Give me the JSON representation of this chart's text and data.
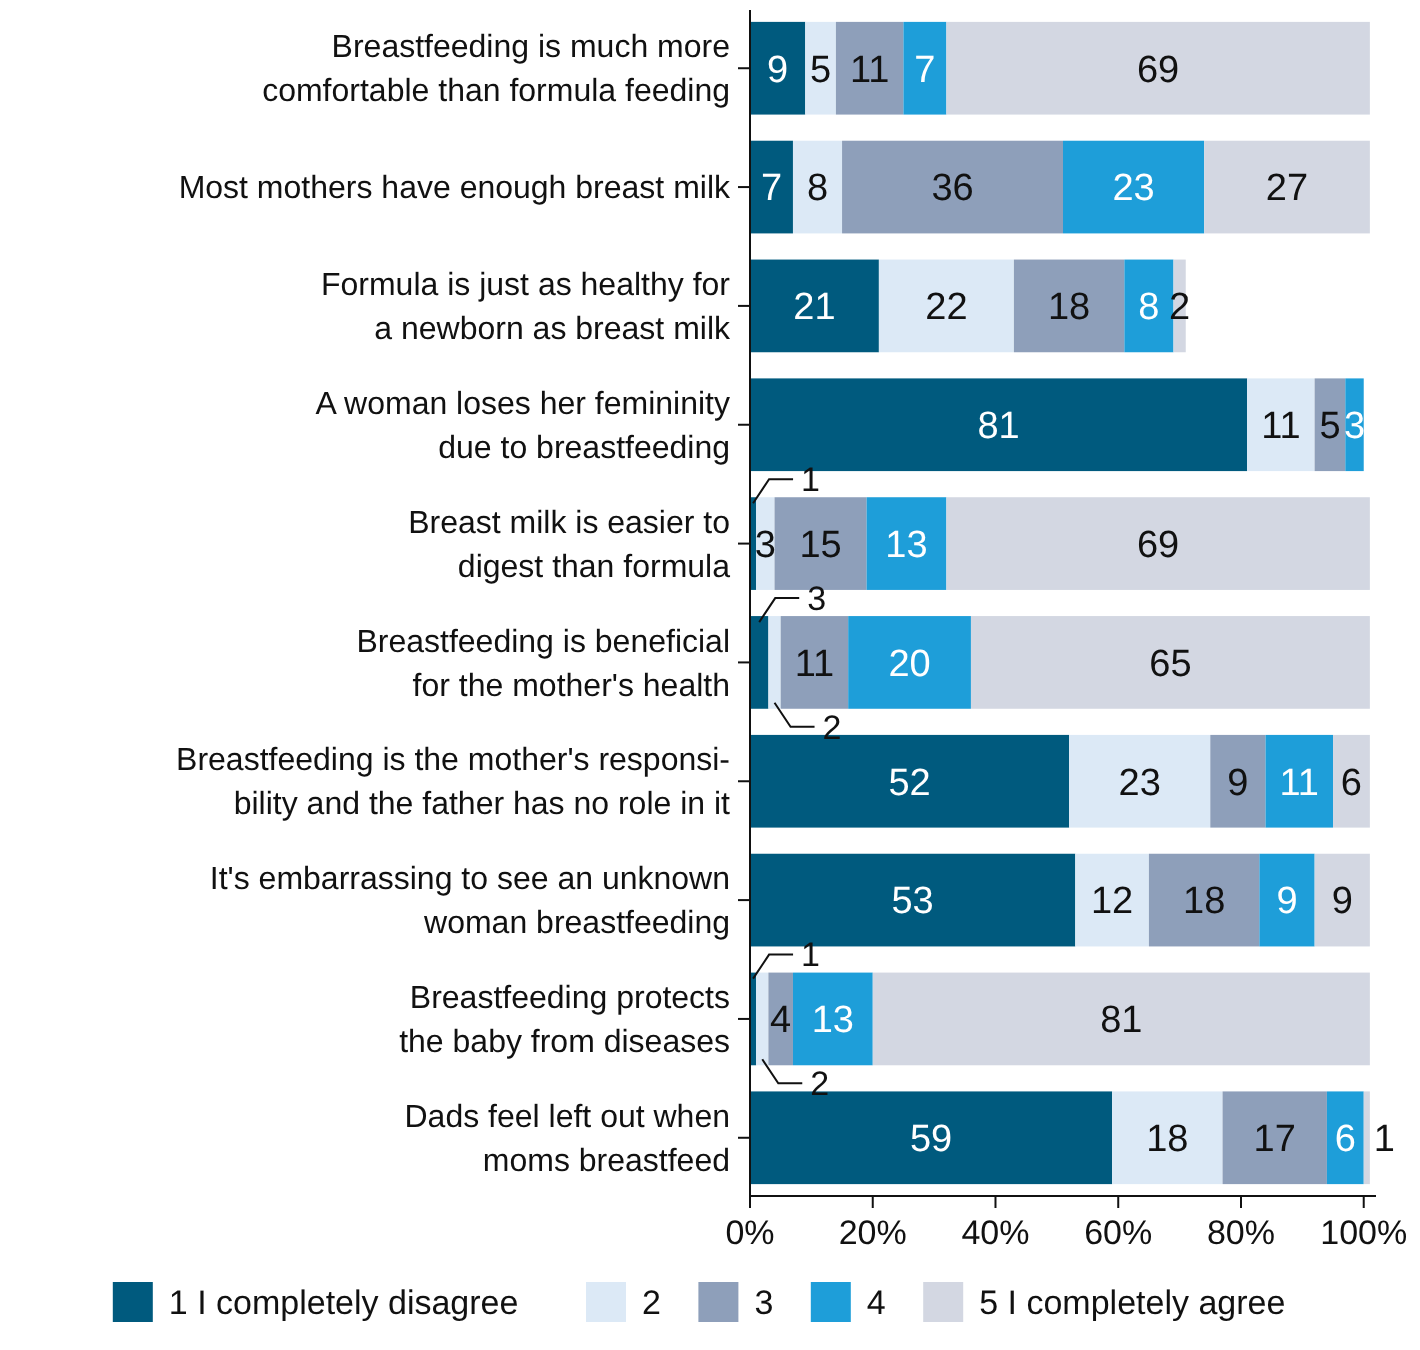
{
  "chart_data": {
    "type": "bar",
    "orientation": "horizontal",
    "stacked": true,
    "data_labels": true,
    "legend": "bottom",
    "categories": [
      "Breastfeeding is much more\ncomfortable than formula feeding",
      "Most mothers have enough breast milk",
      "Formula is just as healthy for\na newborn as breast milk",
      "A woman loses her femininity\ndue to breastfeeding",
      "Breast milk is easier to\ndigest than formula",
      "Breastfeeding is beneficial\nfor the mother's health",
      "Breastfeeding is the mother's responsi-\nbility and the father has no role in it",
      "It's embarrassing to see an unknown\nwoman breastfeeding",
      "Breastfeeding protects\nthe baby from diseases",
      "Dads feel left out when\nmoms breastfeed"
    ],
    "series": [
      {
        "name": "1 I completely disagree",
        "color": "#005a7e",
        "values": [
          9,
          7,
          21,
          81,
          1,
          3,
          52,
          53,
          1,
          59
        ]
      },
      {
        "name": "2",
        "color": "#dce9f6",
        "values": [
          5,
          8,
          22,
          11,
          3,
          2,
          23,
          12,
          2,
          18
        ]
      },
      {
        "name": "3",
        "color": "#8e9fba",
        "values": [
          11,
          36,
          18,
          5,
          15,
          11,
          9,
          18,
          4,
          17
        ]
      },
      {
        "name": "4",
        "color": "#1e9ed9",
        "values": [
          7,
          23,
          8,
          3,
          13,
          20,
          11,
          9,
          13,
          6
        ]
      },
      {
        "name": "5 I completely agree",
        "color": "#d3d7e2",
        "values": [
          69,
          27,
          2,
          null,
          69,
          65,
          6,
          9,
          81,
          1
        ]
      }
    ],
    "xlim": [
      0,
      102
    ],
    "xticks": [
      {
        "value": 0,
        "label": "0%"
      },
      {
        "value": 20,
        "label": "20%"
      },
      {
        "value": 40,
        "label": "40%"
      },
      {
        "value": 60,
        "label": "60%"
      },
      {
        "value": 80,
        "label": "80%"
      },
      {
        "value": 100,
        "label": "100%"
      }
    ]
  }
}
